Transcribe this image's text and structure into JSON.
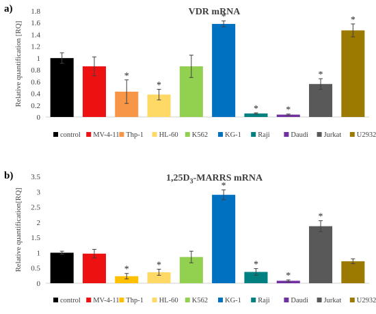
{
  "chart_data": [
    {
      "type": "bar",
      "panel_label": "a)",
      "title": "VDR mRNA",
      "ylabel": "Relative quantification [RQ]",
      "ylim": [
        0,
        1.8
      ],
      "yticks": [
        "0",
        "0.2",
        "0.4",
        "0.6",
        "0.8",
        "1",
        "1.2",
        "1.4",
        "1.6",
        "1.8"
      ],
      "grid": false,
      "legend_position": "bottom",
      "categories": [
        "control",
        "MV-4-11",
        "Thp-1",
        "HL-60",
        "K562",
        "KG-1",
        "Raji",
        "Daudi",
        "Jurkat",
        "U2932"
      ],
      "values": [
        1.0,
        0.86,
        0.43,
        0.38,
        0.86,
        1.58,
        0.06,
        0.04,
        0.56,
        1.47
      ],
      "errors": [
        0.09,
        0.16,
        0.2,
        0.09,
        0.19,
        0.05,
        0.01,
        0.01,
        0.09,
        0.11
      ],
      "significant": [
        false,
        false,
        true,
        true,
        false,
        true,
        true,
        true,
        true,
        true
      ],
      "colors": [
        "#000000",
        "#ee1111",
        "#f79646",
        "#ffd966",
        "#92d050",
        "#0070c0",
        "#008080",
        "#7030a0",
        "#595959",
        "#9c7a00"
      ],
      "marker": "*"
    },
    {
      "type": "bar",
      "panel_label": "b)",
      "title_parts": [
        "1,25D",
        "3",
        "-MARRS mRNA"
      ],
      "ylabel": "Relative quantification[RQ]",
      "ylim": [
        0,
        3.5
      ],
      "yticks": [
        "0",
        "0.5",
        "1",
        "1.5",
        "2",
        "2.5",
        "3",
        "3.5"
      ],
      "grid": false,
      "legend_position": "bottom",
      "categories": [
        "control",
        "MV-4-11",
        "Thp-1",
        "HL-60",
        "K562",
        "KG-1",
        "Raji",
        "Daudi",
        "Jurkat",
        "U2932"
      ],
      "values": [
        1.0,
        0.97,
        0.23,
        0.36,
        0.86,
        2.9,
        0.37,
        0.08,
        1.87,
        0.72
      ],
      "errors": [
        0.05,
        0.14,
        0.09,
        0.1,
        0.19,
        0.16,
        0.11,
        0.03,
        0.18,
        0.08
      ],
      "significant": [
        false,
        false,
        true,
        true,
        false,
        true,
        true,
        true,
        true,
        false
      ],
      "colors": [
        "#000000",
        "#ee1111",
        "#ffc000",
        "#ffd966",
        "#92d050",
        "#0070c0",
        "#008080",
        "#7030a0",
        "#595959",
        "#9c7a00"
      ],
      "marker": "*"
    }
  ]
}
